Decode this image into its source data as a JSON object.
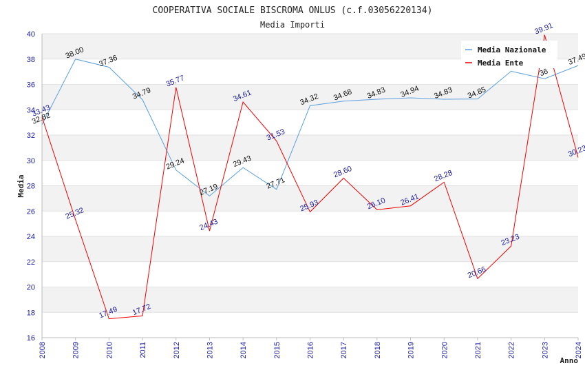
{
  "chart_data": {
    "type": "line",
    "title": "COOPERATIVA SOCIALE BISCROMA ONLUS (c.f.03056220134)",
    "subtitle": "Media Importi",
    "xlabel": "Anno",
    "ylabel": "Media",
    "ylim": [
      16,
      40
    ],
    "yticks": [
      16,
      18,
      20,
      22,
      24,
      26,
      28,
      30,
      32,
      34,
      36,
      38,
      40
    ],
    "x": [
      "2008",
      "2009",
      "2010",
      "2011",
      "2012",
      "2013",
      "2014",
      "2015",
      "2016",
      "2017",
      "2018",
      "2019",
      "2020",
      "2021",
      "2022",
      "2023",
      "2024"
    ],
    "grid": "horizontal alternating bands",
    "legend_position": "top-right",
    "series": [
      {
        "name": "Media Nazionale",
        "color": "#5aa0e0",
        "values": [
          32.82,
          38.0,
          37.36,
          34.79,
          29.24,
          27.19,
          29.43,
          27.71,
          34.32,
          34.68,
          34.83,
          34.94,
          34.83,
          34.85,
          37.04,
          36.45,
          37.49
        ],
        "labels": [
          "32.82",
          "38.00",
          "37.36",
          "34.79",
          "29.24",
          "27.19",
          "29.43",
          "27.71",
          "34.32",
          "34.68",
          "34.83",
          "34.94",
          "34.83",
          "34.85",
          "",
          "36",
          "37.49"
        ]
      },
      {
        "name": "Media Ente",
        "color": "#ee0000",
        "values": [
          33.43,
          25.32,
          17.49,
          17.72,
          35.77,
          24.43,
          34.61,
          31.53,
          25.93,
          28.6,
          26.1,
          26.41,
          28.28,
          20.66,
          23.23,
          39.91,
          30.23
        ],
        "labels": [
          "33.43",
          "25.32",
          "17.49",
          "17.72",
          "35.77",
          "24.43",
          "34.61",
          "31.53",
          "25.93",
          "28.60",
          "26.10",
          "26.41",
          "28.28",
          "20.66",
          "23.23",
          "39.91",
          "30.23"
        ]
      }
    ]
  }
}
